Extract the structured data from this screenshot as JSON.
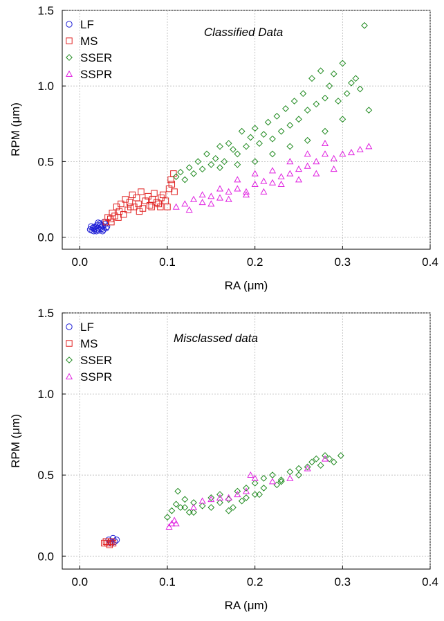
{
  "chart_data": [
    {
      "type": "scatter",
      "title": "",
      "annotation": "Classified Data",
      "xlabel": "RA (μm)",
      "ylabel": "RPM (μm)",
      "xlim": [
        -0.02,
        0.4
      ],
      "ylim": [
        -0.08,
        1.5
      ],
      "xticks": [
        0.0,
        0.1,
        0.2,
        0.3,
        0.4
      ],
      "xtick_labels": [
        "0.0",
        "0.1",
        "0.2",
        "0.3",
        "0.4"
      ],
      "yticks": [
        0.0,
        0.5,
        1.0,
        1.5
      ],
      "ytick_labels": [
        "0.0",
        "0.5",
        "1.0",
        "1.5"
      ],
      "grid": true,
      "legend_position": "top-left",
      "series": [
        {
          "name": "LF",
          "marker": "circle",
          "color": "#1f1fd6",
          "points": [
            [
              0.012,
              0.05
            ],
            [
              0.014,
              0.045
            ],
            [
              0.015,
              0.06
            ],
            [
              0.016,
              0.04
            ],
            [
              0.017,
              0.055
            ],
            [
              0.018,
              0.07
            ],
            [
              0.019,
              0.05
            ],
            [
              0.02,
              0.08
            ],
            [
              0.021,
              0.06
            ],
            [
              0.022,
              0.045
            ],
            [
              0.023,
              0.09
            ],
            [
              0.024,
              0.065
            ],
            [
              0.025,
              0.055
            ],
            [
              0.026,
              0.075
            ],
            [
              0.027,
              0.05
            ],
            [
              0.028,
              0.1
            ],
            [
              0.03,
              0.06
            ],
            [
              0.031,
              0.07
            ],
            [
              0.016,
              0.065
            ],
            [
              0.021,
              0.095
            ],
            [
              0.026,
              0.04
            ],
            [
              0.029,
              0.085
            ],
            [
              0.013,
              0.07
            ],
            [
              0.019,
              0.04
            ],
            [
              0.024,
              0.08
            ]
          ]
        },
        {
          "name": "MS",
          "marker": "square",
          "color": "#e02020",
          "points": [
            [
              0.03,
              0.1
            ],
            [
              0.032,
              0.13
            ],
            [
              0.035,
              0.12
            ],
            [
              0.037,
              0.16
            ],
            [
              0.04,
              0.14
            ],
            [
              0.042,
              0.2
            ],
            [
              0.045,
              0.17
            ],
            [
              0.047,
              0.22
            ],
            [
              0.05,
              0.15
            ],
            [
              0.052,
              0.25
            ],
            [
              0.055,
              0.18
            ],
            [
              0.057,
              0.23
            ],
            [
              0.06,
              0.28
            ],
            [
              0.062,
              0.2
            ],
            [
              0.065,
              0.26
            ],
            [
              0.067,
              0.22
            ],
            [
              0.07,
              0.3
            ],
            [
              0.072,
              0.19
            ],
            [
              0.075,
              0.24
            ],
            [
              0.078,
              0.27
            ],
            [
              0.08,
              0.21
            ],
            [
              0.083,
              0.25
            ],
            [
              0.085,
              0.29
            ],
            [
              0.088,
              0.23
            ],
            [
              0.09,
              0.22
            ],
            [
              0.093,
              0.26
            ],
            [
              0.095,
              0.28
            ],
            [
              0.098,
              0.24
            ],
            [
              0.1,
              0.2
            ],
            [
              0.102,
              0.32
            ],
            [
              0.104,
              0.38
            ],
            [
              0.105,
              0.35
            ],
            [
              0.107,
              0.42
            ],
            [
              0.108,
              0.3
            ],
            [
              0.036,
              0.1
            ],
            [
              0.044,
              0.13
            ],
            [
              0.058,
              0.2
            ],
            [
              0.068,
              0.17
            ],
            [
              0.082,
              0.2
            ],
            [
              0.092,
              0.2
            ]
          ]
        },
        {
          "name": "SSER",
          "marker": "diamond",
          "color": "#208a20",
          "points": [
            [
              0.11,
              0.4
            ],
            [
              0.115,
              0.43
            ],
            [
              0.12,
              0.38
            ],
            [
              0.125,
              0.46
            ],
            [
              0.13,
              0.42
            ],
            [
              0.135,
              0.5
            ],
            [
              0.14,
              0.45
            ],
            [
              0.145,
              0.55
            ],
            [
              0.15,
              0.48
            ],
            [
              0.155,
              0.52
            ],
            [
              0.16,
              0.6
            ],
            [
              0.165,
              0.5
            ],
            [
              0.17,
              0.62
            ],
            [
              0.175,
              0.58
            ],
            [
              0.18,
              0.55
            ],
            [
              0.185,
              0.7
            ],
            [
              0.19,
              0.6
            ],
            [
              0.195,
              0.66
            ],
            [
              0.2,
              0.72
            ],
            [
              0.205,
              0.62
            ],
            [
              0.21,
              0.68
            ],
            [
              0.215,
              0.76
            ],
            [
              0.22,
              0.65
            ],
            [
              0.225,
              0.8
            ],
            [
              0.23,
              0.7
            ],
            [
              0.235,
              0.85
            ],
            [
              0.24,
              0.74
            ],
            [
              0.245,
              0.9
            ],
            [
              0.25,
              0.78
            ],
            [
              0.255,
              0.95
            ],
            [
              0.26,
              0.84
            ],
            [
              0.265,
              1.05
            ],
            [
              0.27,
              0.88
            ],
            [
              0.275,
              1.1
            ],
            [
              0.28,
              0.92
            ],
            [
              0.285,
              1.0
            ],
            [
              0.29,
              1.08
            ],
            [
              0.295,
              0.9
            ],
            [
              0.3,
              1.15
            ],
            [
              0.305,
              0.95
            ],
            [
              0.31,
              1.02
            ],
            [
              0.315,
              1.05
            ],
            [
              0.32,
              0.98
            ],
            [
              0.325,
              1.4
            ],
            [
              0.33,
              0.84
            ],
            [
              0.2,
              0.5
            ],
            [
              0.22,
              0.55
            ],
            [
              0.24,
              0.6
            ],
            [
              0.26,
              0.64
            ],
            [
              0.18,
              0.48
            ],
            [
              0.16,
              0.46
            ],
            [
              0.28,
              0.7
            ],
            [
              0.3,
              0.78
            ]
          ]
        },
        {
          "name": "SSPR",
          "marker": "triangle",
          "color": "#e020e0",
          "points": [
            [
              0.11,
              0.2
            ],
            [
              0.12,
              0.22
            ],
            [
              0.125,
              0.18
            ],
            [
              0.13,
              0.25
            ],
            [
              0.14,
              0.23
            ],
            [
              0.15,
              0.27
            ],
            [
              0.16,
              0.26
            ],
            [
              0.17,
              0.3
            ],
            [
              0.18,
              0.32
            ],
            [
              0.19,
              0.3
            ],
            [
              0.2,
              0.35
            ],
            [
              0.21,
              0.37
            ],
            [
              0.22,
              0.36
            ],
            [
              0.23,
              0.4
            ],
            [
              0.24,
              0.42
            ],
            [
              0.25,
              0.45
            ],
            [
              0.26,
              0.47
            ],
            [
              0.27,
              0.5
            ],
            [
              0.28,
              0.55
            ],
            [
              0.29,
              0.52
            ],
            [
              0.3,
              0.55
            ],
            [
              0.31,
              0.56
            ],
            [
              0.32,
              0.58
            ],
            [
              0.33,
              0.6
            ],
            [
              0.14,
              0.28
            ],
            [
              0.16,
              0.32
            ],
            [
              0.18,
              0.38
            ],
            [
              0.2,
              0.42
            ],
            [
              0.22,
              0.44
            ],
            [
              0.24,
              0.5
            ],
            [
              0.26,
              0.55
            ],
            [
              0.28,
              0.62
            ],
            [
              0.15,
              0.22
            ],
            [
              0.17,
              0.25
            ],
            [
              0.19,
              0.28
            ],
            [
              0.21,
              0.3
            ],
            [
              0.23,
              0.35
            ],
            [
              0.25,
              0.38
            ],
            [
              0.27,
              0.42
            ],
            [
              0.29,
              0.45
            ]
          ]
        }
      ]
    },
    {
      "type": "scatter",
      "title": "",
      "annotation": "Misclassed data",
      "xlabel": "RA (μm)",
      "ylabel": "RPM (μm)",
      "xlim": [
        -0.02,
        0.4
      ],
      "ylim": [
        -0.08,
        1.5
      ],
      "xticks": [
        0.0,
        0.1,
        0.2,
        0.3,
        0.4
      ],
      "xtick_labels": [
        "0.0",
        "0.1",
        "0.2",
        "0.3",
        "0.4"
      ],
      "yticks": [
        0.0,
        0.5,
        1.0,
        1.5
      ],
      "ytick_labels": [
        "0.0",
        "0.5",
        "1.0",
        "1.5"
      ],
      "grid": true,
      "legend_position": "top-left",
      "series": [
        {
          "name": "LF",
          "marker": "circle",
          "color": "#1f1fd6",
          "points": [
            [
              0.033,
              0.1
            ],
            [
              0.035,
              0.09
            ],
            [
              0.038,
              0.11
            ],
            [
              0.04,
              0.09
            ],
            [
              0.042,
              0.1
            ],
            [
              0.036,
              0.08
            ]
          ]
        },
        {
          "name": "MS",
          "marker": "square",
          "color": "#e02020",
          "points": [
            [
              0.028,
              0.08
            ],
            [
              0.03,
              0.09
            ],
            [
              0.032,
              0.08
            ],
            [
              0.034,
              0.07
            ],
            [
              0.036,
              0.09
            ],
            [
              0.038,
              0.08
            ]
          ]
        },
        {
          "name": "SSER",
          "marker": "diamond",
          "color": "#208a20",
          "points": [
            [
              0.1,
              0.24
            ],
            [
              0.105,
              0.28
            ],
            [
              0.11,
              0.32
            ],
            [
              0.112,
              0.4
            ],
            [
              0.115,
              0.3
            ],
            [
              0.12,
              0.35
            ],
            [
              0.125,
              0.27
            ],
            [
              0.13,
              0.33
            ],
            [
              0.14,
              0.31
            ],
            [
              0.15,
              0.36
            ],
            [
              0.16,
              0.38
            ],
            [
              0.17,
              0.35
            ],
            [
              0.175,
              0.3
            ],
            [
              0.18,
              0.4
            ],
            [
              0.185,
              0.34
            ],
            [
              0.19,
              0.42
            ],
            [
              0.2,
              0.45
            ],
            [
              0.205,
              0.38
            ],
            [
              0.21,
              0.48
            ],
            [
              0.22,
              0.5
            ],
            [
              0.225,
              0.44
            ],
            [
              0.23,
              0.47
            ],
            [
              0.24,
              0.52
            ],
            [
              0.25,
              0.54
            ],
            [
              0.26,
              0.55
            ],
            [
              0.265,
              0.58
            ],
            [
              0.27,
              0.6
            ],
            [
              0.275,
              0.56
            ],
            [
              0.28,
              0.62
            ],
            [
              0.285,
              0.6
            ],
            [
              0.29,
              0.58
            ],
            [
              0.298,
              0.62
            ],
            [
              0.15,
              0.3
            ],
            [
              0.17,
              0.28
            ],
            [
              0.19,
              0.36
            ],
            [
              0.21,
              0.42
            ],
            [
              0.23,
              0.46
            ],
            [
              0.25,
              0.5
            ],
            [
              0.16,
              0.33
            ],
            [
              0.2,
              0.38
            ],
            [
              0.13,
              0.27
            ],
            [
              0.12,
              0.3
            ]
          ]
        },
        {
          "name": "SSPR",
          "marker": "triangle",
          "color": "#e020e0",
          "points": [
            [
              0.102,
              0.18
            ],
            [
              0.105,
              0.2
            ],
            [
              0.108,
              0.22
            ],
            [
              0.11,
              0.2
            ],
            [
              0.14,
              0.34
            ],
            [
              0.15,
              0.35
            ],
            [
              0.16,
              0.36
            ],
            [
              0.17,
              0.36
            ],
            [
              0.18,
              0.38
            ],
            [
              0.19,
              0.4
            ],
            [
              0.2,
              0.48
            ],
            [
              0.22,
              0.46
            ],
            [
              0.24,
              0.48
            ],
            [
              0.26,
              0.54
            ],
            [
              0.28,
              0.6
            ],
            [
              0.195,
              0.5
            ],
            [
              0.13,
              0.3
            ]
          ]
        }
      ]
    }
  ]
}
